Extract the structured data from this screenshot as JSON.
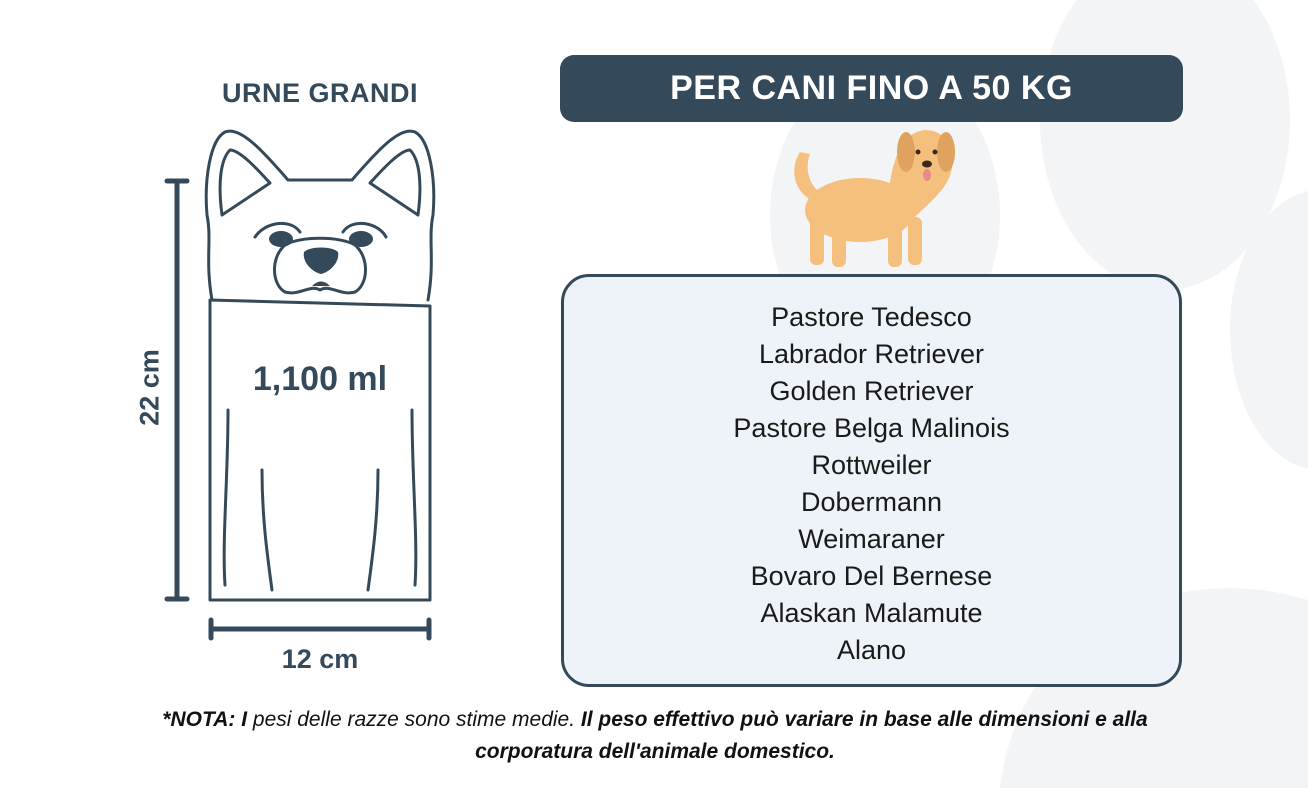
{
  "urn": {
    "title": "URNE GRANDI",
    "volume": "1,100 ml",
    "height": "22 cm",
    "width": "12 cm"
  },
  "header": {
    "title": "PER CANI FINO A 50 KG"
  },
  "breeds": [
    "Pastore Tedesco",
    "Labrador Retriever",
    "Golden Retriever",
    "Pastore Belga Malinois",
    "Rottweiler",
    "Dobermann",
    "Weimaraner",
    "Bovaro Del Bernese",
    "Alaskan Malamute",
    "Alano"
  ],
  "note": {
    "prefix_bold": "*NOTA: I",
    "middle_italic": " pesi delle razze sono stime medie. ",
    "rest_bold": "Il peso effettivo può variare in base alle dimensioni e alla corporatura dell'animale domestico."
  },
  "colors": {
    "primary": "#34495a",
    "box_bg": "#eef3f9",
    "dog_fur": "#f5c07e"
  }
}
